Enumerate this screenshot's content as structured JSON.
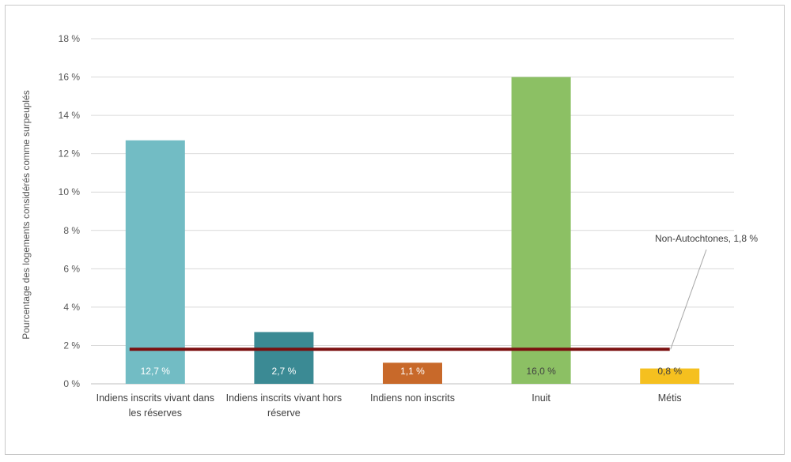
{
  "chart_data": {
    "type": "bar",
    "title": "",
    "xlabel": "",
    "ylabel": "Pourcentage des logements considérés comme surpeuplés",
    "ylim": [
      0,
      18
    ],
    "ytick_step": 2,
    "ytick_labels": [
      "0 %",
      "2 %",
      "4 %",
      "6 %",
      "8 %",
      "10 %",
      "12 %",
      "14 %",
      "16 %",
      "18 %"
    ],
    "grid": true,
    "legend": "none",
    "categories": [
      [
        "Indiens inscrits vivant dans",
        "les réserves"
      ],
      [
        "Indiens inscrits vivant hors",
        "réserve"
      ],
      [
        "Indiens non inscrits"
      ],
      [
        "Inuit"
      ],
      [
        "Métis"
      ]
    ],
    "values": [
      12.7,
      2.7,
      1.1,
      16.0,
      0.8
    ],
    "value_labels": [
      "12,7 %",
      "2,7 %",
      "1,1 %",
      "16,0 %",
      "0,8 %"
    ],
    "colors": [
      "#72bcc4",
      "#3b8a94",
      "#c8692a",
      "#8cc064",
      "#f5c01f"
    ],
    "label_colors": [
      "#ffffff",
      "#ffffff",
      "#ffffff",
      "#404040",
      "#404040"
    ],
    "reference_line": {
      "value": 1.8,
      "label": "Non-Autochtones, 1,8 %",
      "color": "#7b1010"
    }
  }
}
